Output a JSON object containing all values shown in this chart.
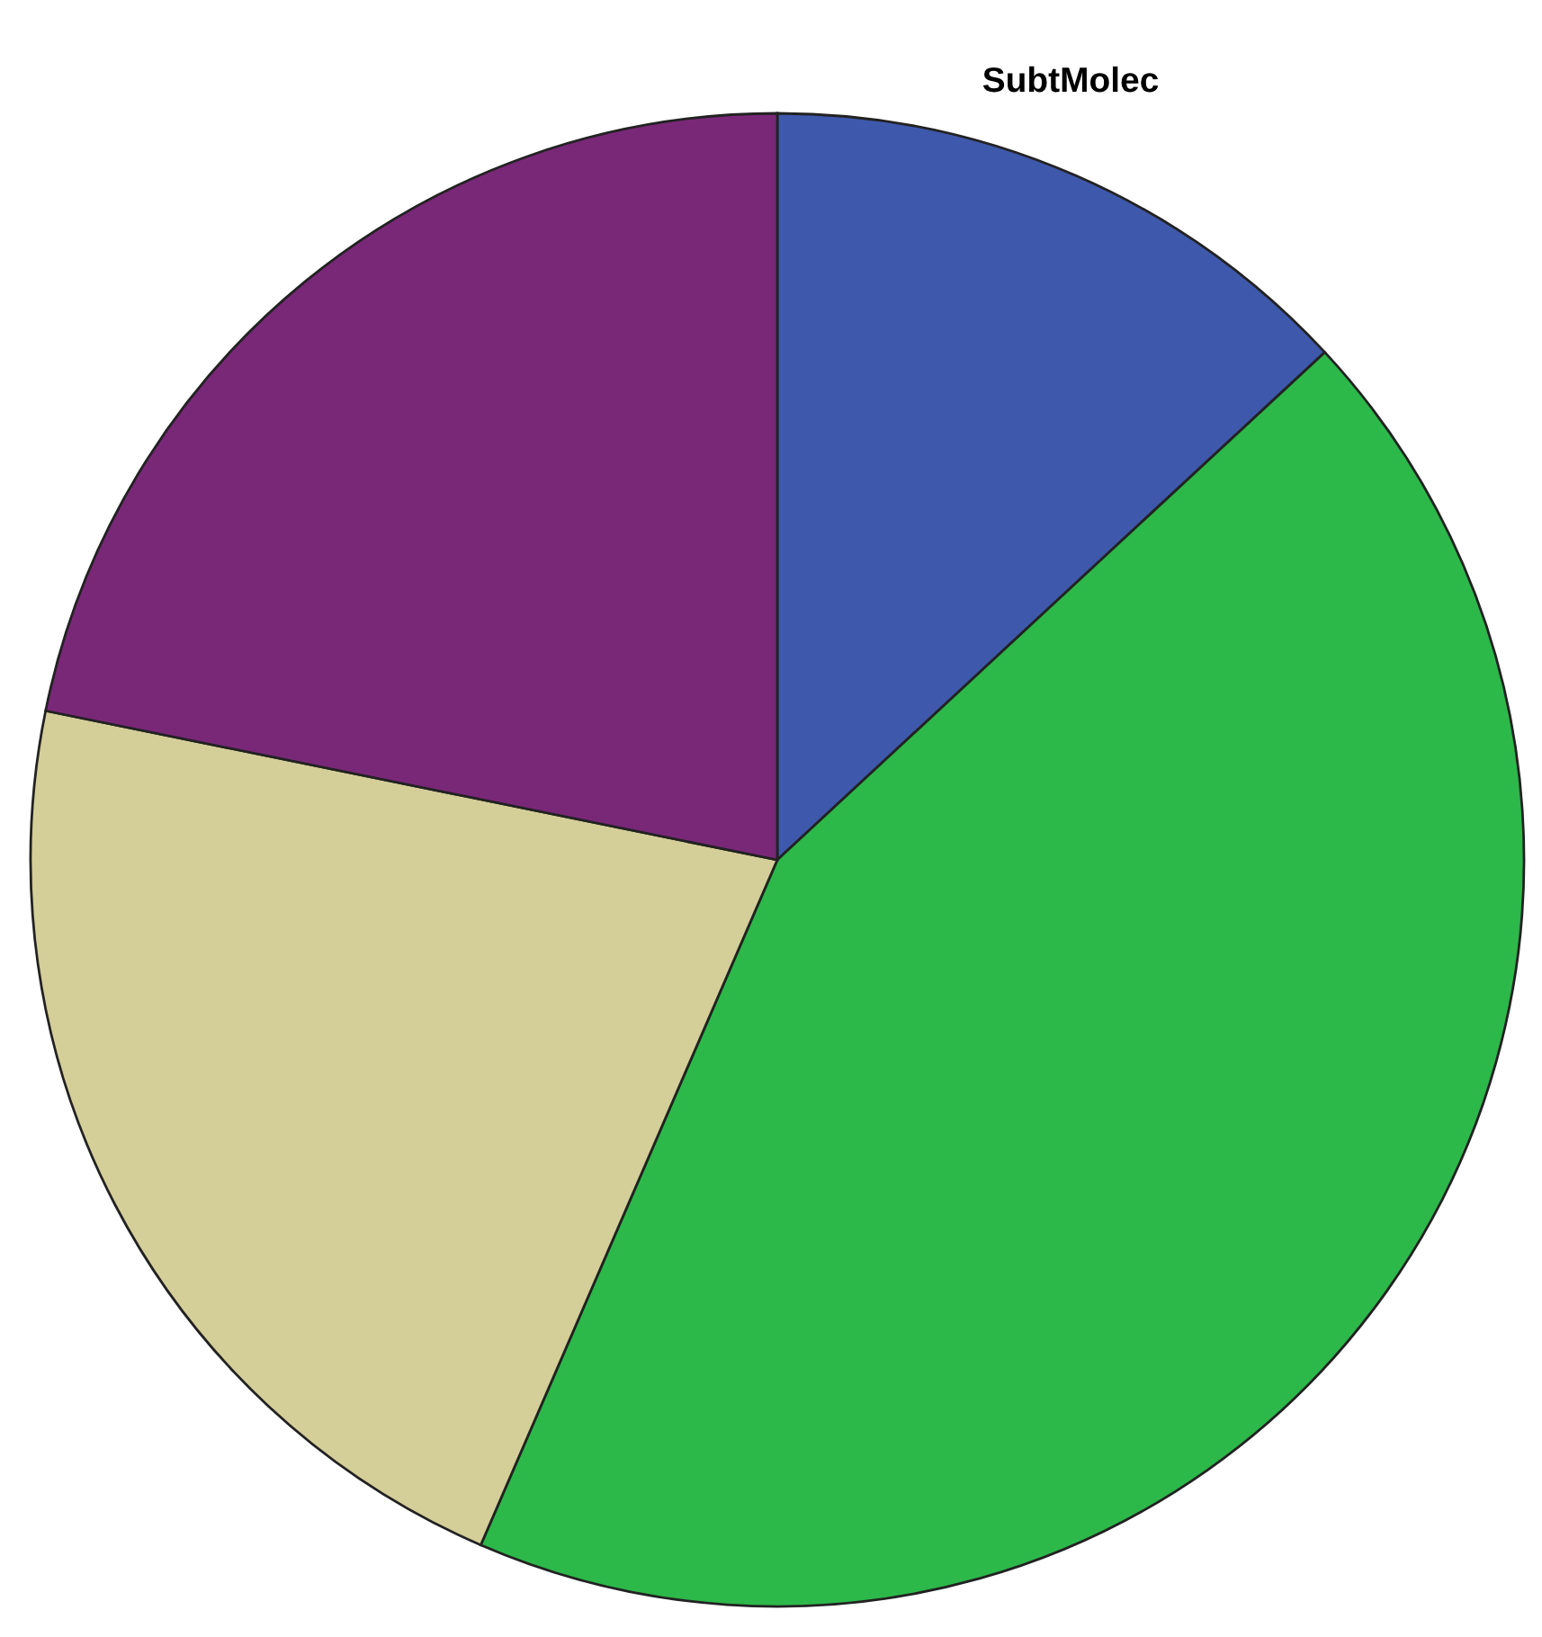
{
  "chart_data": {
    "type": "pie",
    "title": "SubtMolec",
    "categories": [
      null,
      null,
      null,
      null
    ],
    "values": [
      13.1,
      43.4,
      21.7,
      21.8
    ],
    "colors": [
      "#3e58ab",
      "#2db84a",
      "#d4ce98",
      "#792878"
    ]
  }
}
